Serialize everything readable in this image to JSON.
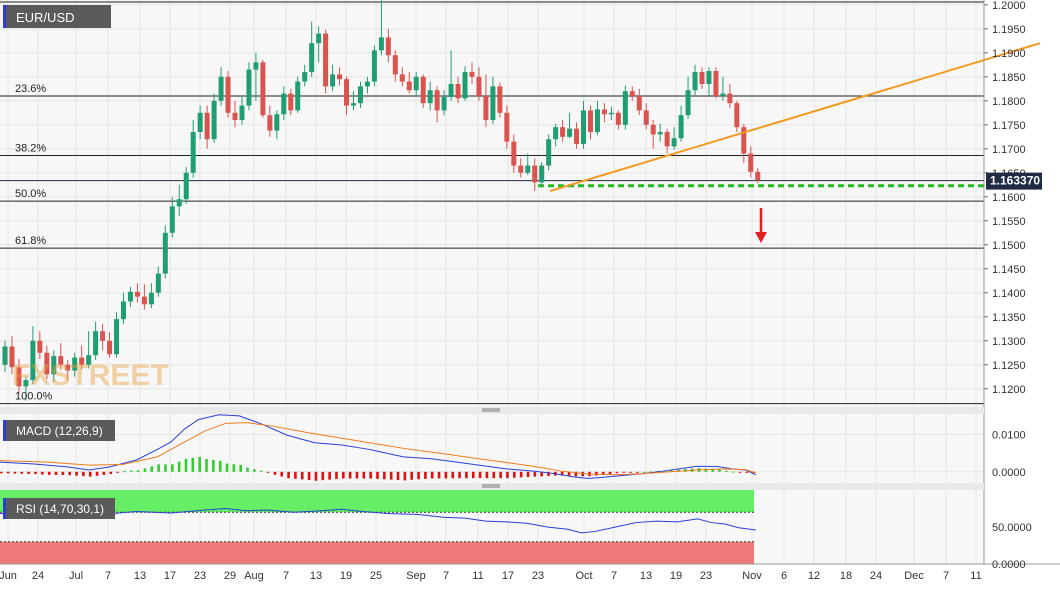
{
  "chart_data": {
    "type": "candlestick",
    "symbol": "EUR/USD",
    "last_price": "1.163370",
    "watermark": "FXSTREET",
    "y_axis": {
      "ylim": [
        1.1162,
        1.201
      ],
      "ticks": [
        "1.2000",
        "1.1950",
        "1.1900",
        "1.1850",
        "1.1800",
        "1.1750",
        "1.1700",
        "1.1650",
        "1.1600",
        "1.1550",
        "1.1500",
        "1.1450",
        "1.1400",
        "1.1350",
        "1.1300",
        "1.1250",
        "1.1200"
      ],
      "tick_values": [
        1.2,
        1.195,
        1.19,
        1.185,
        1.18,
        1.175,
        1.17,
        1.165,
        1.16,
        1.155,
        1.15,
        1.145,
        1.14,
        1.135,
        1.13,
        1.125,
        1.12
      ]
    },
    "x_axis": {
      "labels": [
        "Jun",
        "24",
        "Jul",
        "7",
        "13",
        "17",
        "23",
        "29",
        "Aug",
        "7",
        "13",
        "19",
        "25",
        "Sep",
        "7",
        "11",
        "17",
        "23",
        "Oct",
        "7",
        "13",
        "19",
        "23",
        "Nov",
        "6",
        "12",
        "18",
        "24",
        "Dec",
        "7",
        "11"
      ]
    },
    "fibonacci": [
      {
        "label": "23.6%",
        "value": 1.181
      },
      {
        "label": "38.2%",
        "value": 1.1686
      },
      {
        "label": "50.0%",
        "value": 1.1591
      },
      {
        "label": "61.8%",
        "value": 1.1493
      },
      {
        "label": "100.0%",
        "value": 1.1169
      }
    ],
    "support_level": 1.1623,
    "trendline": {
      "x": [
        550,
        1040
      ],
      "y": [
        1.1612,
        1.192
      ]
    },
    "projection_arrow": "down",
    "colors": {
      "up": "#1f9e72",
      "down": "#d9534f",
      "trendline": "#f29a1e",
      "support": "#22bb22",
      "arrow": "#e02020",
      "macd": "#2a3fd6",
      "signal": "#f07a1a",
      "hist_pos": "#33cc33",
      "hist_neg": "#e01010",
      "rsi_line": "#2a3fd6",
      "rsi_overbought": "#66ee66",
      "rsi_oversold": "#f07a7a"
    },
    "candles": [
      [
        0,
        1.125,
        1.1288,
        1.13,
        1.1235
      ],
      [
        1,
        1.1288,
        1.1245,
        1.131,
        1.123
      ],
      [
        2,
        1.1245,
        1.1205,
        1.1262,
        1.119
      ],
      [
        3,
        1.1205,
        1.1218,
        1.1225,
        1.1175
      ],
      [
        4,
        1.1218,
        1.13,
        1.133,
        1.121
      ],
      [
        5,
        1.13,
        1.1275,
        1.132,
        1.1262
      ],
      [
        6,
        1.1275,
        1.123,
        1.129,
        1.122
      ],
      [
        7,
        1.123,
        1.1268,
        1.128,
        1.1215
      ],
      [
        8,
        1.1268,
        1.125,
        1.1295,
        1.124
      ],
      [
        9,
        1.125,
        1.1238,
        1.126,
        1.1218
      ],
      [
        10,
        1.1238,
        1.1265,
        1.1275,
        1.1225
      ],
      [
        11,
        1.1265,
        1.125,
        1.129,
        1.124
      ],
      [
        12,
        1.125,
        1.127,
        1.132,
        1.1242
      ],
      [
        13,
        1.127,
        1.132,
        1.134,
        1.126
      ],
      [
        14,
        1.132,
        1.13,
        1.1335,
        1.128
      ],
      [
        15,
        1.13,
        1.1272,
        1.1318,
        1.1265
      ],
      [
        16,
        1.1272,
        1.1345,
        1.136,
        1.1265
      ],
      [
        17,
        1.1345,
        1.1382,
        1.14,
        1.1335
      ],
      [
        18,
        1.1382,
        1.1402,
        1.1412,
        1.137
      ],
      [
        19,
        1.1402,
        1.1392,
        1.142,
        1.138
      ],
      [
        20,
        1.1392,
        1.1376,
        1.1418,
        1.1365
      ],
      [
        21,
        1.1376,
        1.14,
        1.142,
        1.1368
      ],
      [
        22,
        1.14,
        1.144,
        1.1455,
        1.1392
      ],
      [
        23,
        1.144,
        1.1525,
        1.154,
        1.143
      ],
      [
        24,
        1.1525,
        1.158,
        1.16,
        1.1515
      ],
      [
        25,
        1.158,
        1.1595,
        1.1625,
        1.156
      ],
      [
        26,
        1.1595,
        1.165,
        1.1662,
        1.1585
      ],
      [
        27,
        1.165,
        1.1735,
        1.176,
        1.164
      ],
      [
        28,
        1.1735,
        1.1775,
        1.179,
        1.172
      ],
      [
        29,
        1.1775,
        1.172,
        1.179,
        1.17
      ],
      [
        30,
        1.172,
        1.18,
        1.1815,
        1.1712
      ],
      [
        31,
        1.18,
        1.185,
        1.187,
        1.179
      ],
      [
        32,
        1.185,
        1.1775,
        1.1862,
        1.1765
      ],
      [
        33,
        1.1775,
        1.176,
        1.18,
        1.1745
      ],
      [
        34,
        1.176,
        1.179,
        1.181,
        1.175
      ],
      [
        35,
        1.179,
        1.1865,
        1.188,
        1.178
      ],
      [
        36,
        1.1865,
        1.188,
        1.19,
        1.18
      ],
      [
        37,
        1.188,
        1.177,
        1.1885,
        1.1765
      ],
      [
        38,
        1.177,
        1.1738,
        1.179,
        1.1725
      ],
      [
        39,
        1.1738,
        1.1772,
        1.178,
        1.172
      ],
      [
        40,
        1.1772,
        1.1815,
        1.183,
        1.176
      ],
      [
        41,
        1.1815,
        1.178,
        1.1825,
        1.177
      ],
      [
        42,
        1.178,
        1.184,
        1.185,
        1.1775
      ],
      [
        43,
        1.184,
        1.186,
        1.1875,
        1.183
      ],
      [
        44,
        1.186,
        1.192,
        1.1965,
        1.185
      ],
      [
        45,
        1.192,
        1.194,
        1.1955,
        1.188
      ],
      [
        46,
        1.194,
        1.183,
        1.1948,
        1.1815
      ],
      [
        47,
        1.183,
        1.1855,
        1.1875,
        1.182
      ],
      [
        48,
        1.1855,
        1.1845,
        1.187,
        1.1832
      ],
      [
        49,
        1.1845,
        1.179,
        1.185,
        1.177
      ],
      [
        50,
        1.179,
        1.1795,
        1.182,
        1.178
      ],
      [
        51,
        1.1795,
        1.183,
        1.184,
        1.1785
      ],
      [
        52,
        1.183,
        1.184,
        1.185,
        1.1815
      ],
      [
        53,
        1.184,
        1.1905,
        1.1915,
        1.183
      ],
      [
        54,
        1.1905,
        1.1932,
        1.201,
        1.1895
      ],
      [
        55,
        1.1932,
        1.1895,
        1.195,
        1.188
      ],
      [
        56,
        1.1895,
        1.1855,
        1.1905,
        1.184
      ],
      [
        57,
        1.1855,
        1.184,
        1.187,
        1.183
      ],
      [
        58,
        1.184,
        1.1822,
        1.186,
        1.1815
      ],
      [
        59,
        1.1822,
        1.185,
        1.186,
        1.181
      ],
      [
        60,
        1.185,
        1.1795,
        1.1855,
        1.1785
      ],
      [
        61,
        1.1795,
        1.1822,
        1.184,
        1.178
      ],
      [
        62,
        1.1822,
        1.178,
        1.183,
        1.1755
      ],
      [
        63,
        1.178,
        1.1808,
        1.1822,
        1.177
      ],
      [
        64,
        1.1808,
        1.1835,
        1.1905,
        1.18
      ],
      [
        65,
        1.1835,
        1.1805,
        1.185,
        1.1795
      ],
      [
        66,
        1.1805,
        1.186,
        1.1872,
        1.18
      ],
      [
        67,
        1.186,
        1.185,
        1.188,
        1.1835
      ],
      [
        68,
        1.185,
        1.181,
        1.187,
        1.18
      ],
      [
        69,
        1.181,
        1.176,
        1.1855,
        1.1745
      ],
      [
        70,
        1.176,
        1.183,
        1.185,
        1.1752
      ],
      [
        71,
        1.183,
        1.1775,
        1.1838,
        1.1765
      ],
      [
        72,
        1.1775,
        1.1715,
        1.179,
        1.17
      ],
      [
        73,
        1.1715,
        1.1665,
        1.173,
        1.165
      ],
      [
        74,
        1.1665,
        1.165,
        1.168,
        1.164
      ],
      [
        75,
        1.165,
        1.1665,
        1.169,
        1.1645
      ],
      [
        76,
        1.1665,
        1.163,
        1.168,
        1.1612
      ],
      [
        77,
        1.163,
        1.1665,
        1.1672,
        1.162
      ],
      [
        78,
        1.1665,
        1.172,
        1.173,
        1.1655
      ],
      [
        79,
        1.172,
        1.1745,
        1.1752,
        1.1705
      ],
      [
        80,
        1.1745,
        1.1725,
        1.176,
        1.1715
      ],
      [
        81,
        1.1725,
        1.1742,
        1.1775,
        1.1722
      ],
      [
        82,
        1.1742,
        1.171,
        1.1755,
        1.17
      ],
      [
        83,
        1.171,
        1.178,
        1.18,
        1.17
      ],
      [
        84,
        1.178,
        1.1735,
        1.179,
        1.172
      ],
      [
        85,
        1.1735,
        1.1782,
        1.18,
        1.1728
      ],
      [
        86,
        1.1782,
        1.1772,
        1.1795,
        1.1755
      ],
      [
        87,
        1.1772,
        1.1775,
        1.1788,
        1.176
      ],
      [
        88,
        1.1775,
        1.175,
        1.178,
        1.174
      ],
      [
        89,
        1.175,
        1.182,
        1.1832,
        1.174
      ],
      [
        90,
        1.182,
        1.181,
        1.183,
        1.18
      ],
      [
        91,
        1.181,
        1.178,
        1.1825,
        1.177
      ],
      [
        92,
        1.178,
        1.175,
        1.1795,
        1.174
      ],
      [
        93,
        1.175,
        1.173,
        1.176,
        1.17
      ],
      [
        94,
        1.173,
        1.1735,
        1.1752,
        1.1715
      ],
      [
        95,
        1.1735,
        1.1705,
        1.1742,
        1.169
      ],
      [
        96,
        1.1705,
        1.1722,
        1.1745,
        1.1698
      ],
      [
        97,
        1.1722,
        1.177,
        1.179,
        1.1715
      ],
      [
        98,
        1.177,
        1.1822,
        1.185,
        1.1762
      ],
      [
        99,
        1.1822,
        1.186,
        1.1875,
        1.1812
      ],
      [
        100,
        1.186,
        1.1835,
        1.187,
        1.1825
      ],
      [
        101,
        1.1835,
        1.1862,
        1.187,
        1.1808
      ],
      [
        102,
        1.1862,
        1.181,
        1.187,
        1.1805
      ],
      [
        103,
        1.181,
        1.1815,
        1.185,
        1.18
      ],
      [
        104,
        1.1815,
        1.1795,
        1.1835,
        1.1785
      ],
      [
        105,
        1.1795,
        1.1745,
        1.18,
        1.1735
      ],
      [
        106,
        1.1745,
        1.169,
        1.1752,
        1.167
      ],
      [
        107,
        1.169,
        1.1652,
        1.1705,
        1.164
      ],
      [
        108,
        1.1652,
        1.1634,
        1.166,
        1.1628
      ]
    ],
    "macd": {
      "label": "MACD (12,26,9)",
      "ylim": [
        -0.003,
        0.0155
      ],
      "ticks": [
        "0.0100",
        "0.0000"
      ],
      "tick_values": [
        0.01,
        0.0
      ],
      "macd_line": [
        [
          0,
          0.0026
        ],
        [
          10,
          0.0021
        ],
        [
          20,
          0.0013
        ],
        [
          26,
          0.0005
        ],
        [
          32,
          0.0013
        ],
        [
          40,
          0.0032
        ],
        [
          46,
          0.006
        ],
        [
          50,
          0.008
        ],
        [
          54,
          0.0115
        ],
        [
          58,
          0.014
        ],
        [
          64,
          0.0153
        ],
        [
          70,
          0.015
        ],
        [
          76,
          0.013
        ],
        [
          84,
          0.0098
        ],
        [
          92,
          0.0078
        ],
        [
          100,
          0.0072
        ],
        [
          108,
          0.006
        ],
        [
          118,
          0.004
        ],
        [
          126,
          0.0035
        ],
        [
          132,
          0.0028
        ],
        [
          140,
          0.0018
        ],
        [
          148,
          0.0008
        ],
        [
          156,
          0.0002
        ],
        [
          162,
          -0.0005
        ],
        [
          168,
          -0.0014
        ],
        [
          172,
          -0.0018
        ],
        [
          176,
          -0.0015
        ],
        [
          182,
          -0.001
        ],
        [
          188,
          -0.0005
        ],
        [
          194,
          0.0002
        ],
        [
          200,
          0.001
        ],
        [
          204,
          0.0015
        ],
        [
          210,
          0.0014
        ],
        [
          214,
          0.0008
        ],
        [
          218,
          0.0005
        ],
        [
          221,
          -0.0008
        ]
      ],
      "signal_line": [
        [
          0,
          0.003
        ],
        [
          14,
          0.0026
        ],
        [
          26,
          0.0018
        ],
        [
          36,
          0.002
        ],
        [
          46,
          0.004
        ],
        [
          54,
          0.008
        ],
        [
          60,
          0.011
        ],
        [
          66,
          0.013
        ],
        [
          72,
          0.0132
        ],
        [
          80,
          0.0122
        ],
        [
          90,
          0.0105
        ],
        [
          100,
          0.009
        ],
        [
          110,
          0.0075
        ],
        [
          120,
          0.006
        ],
        [
          130,
          0.0048
        ],
        [
          140,
          0.0035
        ],
        [
          148,
          0.0025
        ],
        [
          156,
          0.0015
        ],
        [
          164,
          0.0002
        ],
        [
          172,
          -0.0006
        ],
        [
          180,
          -0.0008
        ],
        [
          188,
          -0.0005
        ],
        [
          196,
          0.0
        ],
        [
          204,
          0.0005
        ],
        [
          212,
          0.0008
        ],
        [
          218,
          0.0006
        ],
        [
          221,
          -0.0003
        ]
      ]
    },
    "rsi": {
      "label": "RSI (14,70,30,1)",
      "ylim": [
        0,
        100
      ],
      "ticks": [
        "50.0000",
        "0.0000"
      ],
      "tick_values": [
        50,
        0
      ],
      "levels": [
        70,
        30
      ],
      "rsi_line": [
        [
          0,
          68
        ],
        [
          10,
          69
        ],
        [
          20,
          66
        ],
        [
          30,
          67
        ],
        [
          40,
          71
        ],
        [
          50,
          69
        ],
        [
          60,
          73
        ],
        [
          66,
          75
        ],
        [
          72,
          72
        ],
        [
          78,
          73
        ],
        [
          86,
          70
        ],
        [
          94,
          72
        ],
        [
          100,
          74
        ],
        [
          106,
          71
        ],
        [
          114,
          68
        ],
        [
          122,
          67
        ],
        [
          130,
          63
        ],
        [
          136,
          62
        ],
        [
          142,
          58
        ],
        [
          148,
          57
        ],
        [
          154,
          55
        ],
        [
          160,
          50
        ],
        [
          166,
          47
        ],
        [
          170,
          42
        ],
        [
          174,
          44
        ],
        [
          180,
          50
        ],
        [
          186,
          56
        ],
        [
          192,
          58
        ],
        [
          198,
          57
        ],
        [
          204,
          61
        ],
        [
          208,
          56
        ],
        [
          212,
          54
        ],
        [
          216,
          49
        ],
        [
          221,
          46
        ]
      ]
    }
  }
}
